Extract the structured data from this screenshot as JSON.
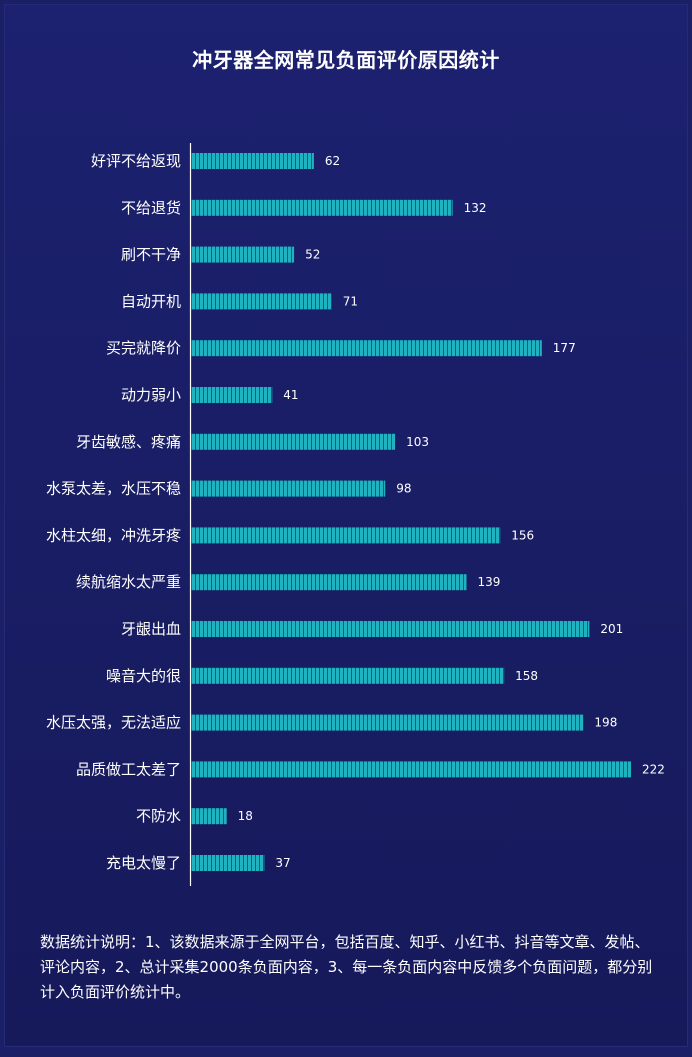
{
  "chart_data": {
    "type": "bar",
    "orientation": "horizontal",
    "title": "冲牙器全网常见负面评价原因统计",
    "categories": [
      "好评不给返现",
      "不给退货",
      "刷不干净",
      "自动开机",
      "买完就降价",
      "动力弱小",
      "牙齿敏感、疼痛",
      "水泵太差，水压不稳",
      "水柱太细，冲洗牙疼",
      "续航缩水太严重",
      "牙龈出血",
      "噪音大的很",
      "水压太强，无法适应",
      "品质做工太差了",
      "不防水",
      "充电太慢了"
    ],
    "values": [
      62,
      132,
      52,
      71,
      177,
      41,
      103,
      98,
      156,
      139,
      201,
      158,
      198,
      222,
      18,
      37
    ],
    "xlim": [
      0,
      222
    ],
    "grid": false,
    "data_labels": true,
    "colors": {
      "bar": "#1fb3c1",
      "background": "#1b1f66",
      "text": "#ffffff",
      "axis": "#ffffff"
    }
  },
  "note": "数据统计说明：1、该数据来源于全网平台，包括百度、知乎、小红书、抖音等文章、发帖、评论内容，2、总计采集2000条负面内容，3、每一条负面内容中反馈多个负面问题，都分别计入负面评价统计中。"
}
